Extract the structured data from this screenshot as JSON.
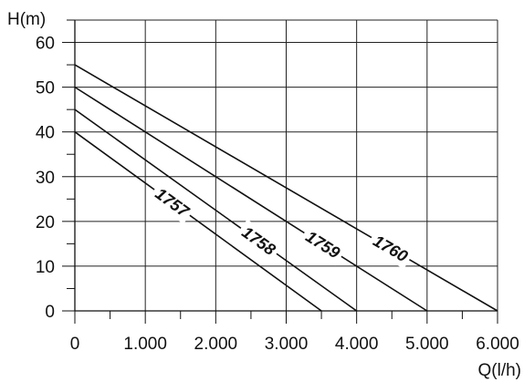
{
  "chart_data": {
    "type": "line",
    "xlabel": "Q(l/h)",
    "ylabel": "H(m)",
    "xlim": [
      0,
      6000
    ],
    "ylim": [
      0,
      65
    ],
    "x_ticks": [
      0,
      1000,
      2000,
      3000,
      4000,
      5000,
      6000
    ],
    "x_tick_labels": [
      "0",
      "1.000",
      "2.000",
      "3.000",
      "4.000",
      "5.000",
      "6.000"
    ],
    "x_minor_step": 500,
    "y_ticks": [
      0,
      10,
      20,
      30,
      40,
      50,
      60
    ],
    "y_tick_labels": [
      "0",
      "10",
      "20",
      "30",
      "40",
      "50",
      "60"
    ],
    "y_minor_step": 5,
    "grid": true,
    "colors": {
      "line": "#111111",
      "grid": "#222222",
      "background": "#ffffff"
    },
    "series": [
      {
        "name": "1757",
        "x": [
          0,
          3500
        ],
        "y": [
          40,
          0
        ]
      },
      {
        "name": "1758",
        "x": [
          0,
          4000
        ],
        "y": [
          45,
          0
        ]
      },
      {
        "name": "1759",
        "x": [
          0,
          5000
        ],
        "y": [
          50,
          0
        ]
      },
      {
        "name": "1760",
        "x": [
          0,
          6000
        ],
        "y": [
          55,
          0
        ]
      }
    ],
    "series_label_positions": [
      {
        "name": "1757",
        "x": 1380
      },
      {
        "name": "1758",
        "x": 2610
      },
      {
        "name": "1759",
        "x": 3520
      },
      {
        "name": "1760",
        "x": 4480
      }
    ]
  }
}
